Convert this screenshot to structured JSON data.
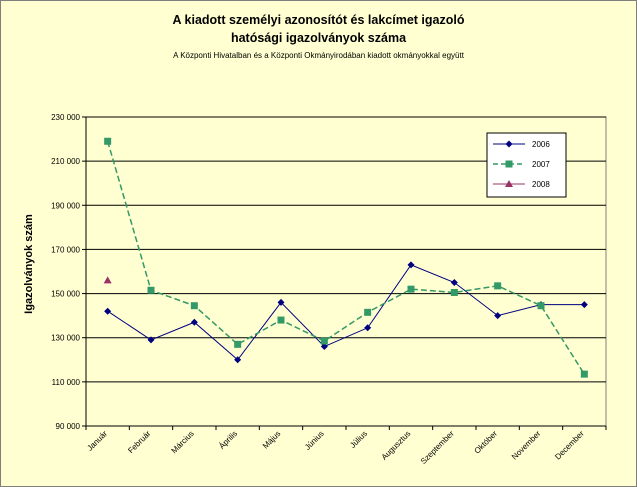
{
  "chart_data": {
    "type": "line",
    "title": "A kiadott személyi azonosítót és lakcímet igazoló",
    "title_line2": "hatósági igazolványok száma",
    "subtitle": "A Központi Hivatalban és a Központi Okmányirodában kiadott okmányokkal együtt",
    "ylabel": "Igazolványok szám",
    "xlabel": "",
    "ylim": [
      90000,
      230000
    ],
    "yticks": [
      90000,
      110000,
      130000,
      150000,
      170000,
      190000,
      210000,
      230000
    ],
    "ytick_labels": [
      "90 000",
      "110 000",
      "130 000",
      "150 000",
      "170 000",
      "190 000",
      "210 000",
      "230 000"
    ],
    "categories": [
      "Január",
      "Február",
      "Március",
      "Április",
      "Május",
      "Június",
      "Július",
      "Augusztus",
      "Szeptember",
      "Október",
      "November",
      "December"
    ],
    "grid": "horizontal",
    "legend": "top-right",
    "series": [
      {
        "name": "2006",
        "color": "#000080",
        "marker": "diamond",
        "dashed": false,
        "values": [
          142000,
          129000,
          137000,
          120000,
          146000,
          126000,
          134500,
          163000,
          155000,
          140000,
          145000,
          145000
        ]
      },
      {
        "name": "2007",
        "color": "#339966",
        "marker": "square",
        "dashed": true,
        "values": [
          219000,
          151500,
          144500,
          127000,
          138000,
          128500,
          141500,
          152000,
          150500,
          153500,
          144500,
          113500
        ]
      },
      {
        "name": "2008",
        "color": "#993366",
        "marker": "triangle",
        "dashed": false,
        "values": [
          156000,
          null,
          null,
          null,
          null,
          null,
          null,
          null,
          null,
          null,
          null,
          null
        ]
      }
    ]
  }
}
